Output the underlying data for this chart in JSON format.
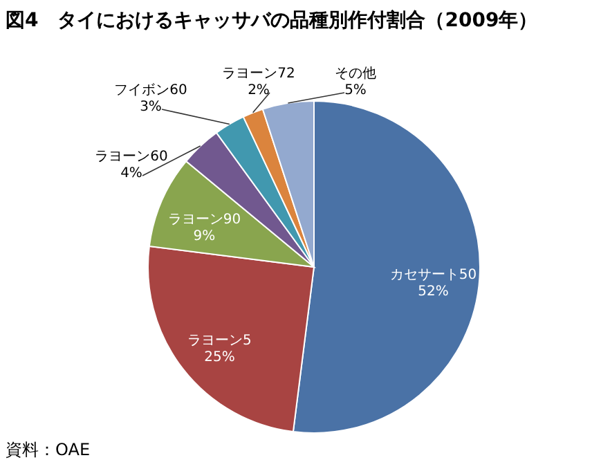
{
  "chart_data": {
    "type": "pie",
    "title": "図4　タイにおけるキャッサバの品種別作付割合（2009年）",
    "categories": [
      "カセサート50",
      "ラヨーン5",
      "ラヨーン90",
      "ラヨーン60",
      "フイボン60",
      "ラヨーン72",
      "その他"
    ],
    "values": [
      52,
      25,
      9,
      4,
      3,
      2,
      5
    ],
    "colors": [
      "#4a72a6",
      "#a84442",
      "#89a54e",
      "#71588f",
      "#4198af",
      "#db843d",
      "#93a9cf"
    ],
    "value_labels": [
      "52%",
      "25%",
      "9%",
      "4%",
      "3%",
      "2%",
      "5%"
    ],
    "annotations": [
      "資料：OAE"
    ]
  }
}
